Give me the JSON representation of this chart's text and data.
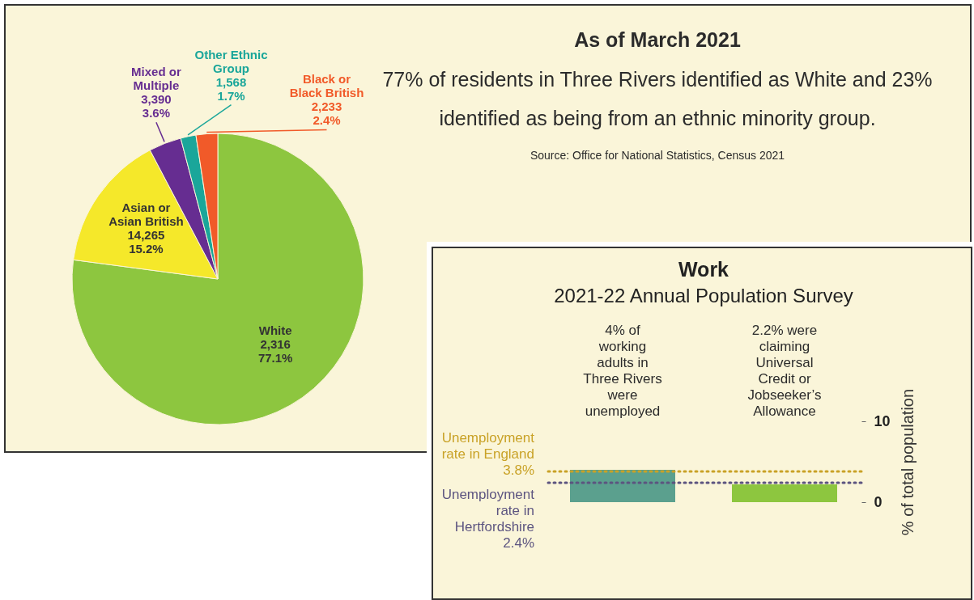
{
  "chart_data": [
    {
      "type": "pie",
      "title": "As of March 2021",
      "subtitle": "77% of residents in Three Rivers identified as White and 23% identified as being from an ethnic minority group.",
      "annotations": [
        "Source: Office for National Statistics, Census 2021"
      ],
      "categories": [
        "White",
        "Asian or Asian British",
        "Mixed or Multiple",
        "Other Ethnic Group",
        "Black or Black British"
      ],
      "values": [
        77.1,
        15.2,
        3.6,
        1.7,
        2.4
      ],
      "colors": [
        "#8dc63f",
        "#f5e82a",
        "#662d91",
        "#1aa69a",
        "#f15a29"
      ],
      "value_labels": [
        "2,316\n77.1%",
        "14,265\n15.2%",
        "3,390\n3.6%",
        "1,568\n1.7%",
        "2,233\n2.4%"
      ]
    },
    {
      "type": "bar",
      "title": "Work",
      "subtitle": "2021-22 Annual Population Survey",
      "ylabel": "% of total population",
      "categories": [
        "4% of working adults in Three Rivers were unemployed",
        "2.2% were claiming Universal Credit or Jobseeker’s Allowance"
      ],
      "values": [
        4,
        2.2
      ],
      "colors": [
        "#5ba08e",
        "#8dc63f"
      ],
      "ylim": [
        0,
        10
      ],
      "yticks": [
        0,
        10
      ],
      "grid": false,
      "ref_lines": [
        {
          "axis": "y",
          "value": 3.8,
          "label": "Unemployment rate in England 3.8%",
          "color": "#c9a227",
          "line_style": "dotted"
        },
        {
          "axis": "y",
          "value": 2.4,
          "label": "Unemployment rate in Hertfordshire 2.4%",
          "color": "#5c5480",
          "line_style": "dotted"
        }
      ]
    }
  ]
}
